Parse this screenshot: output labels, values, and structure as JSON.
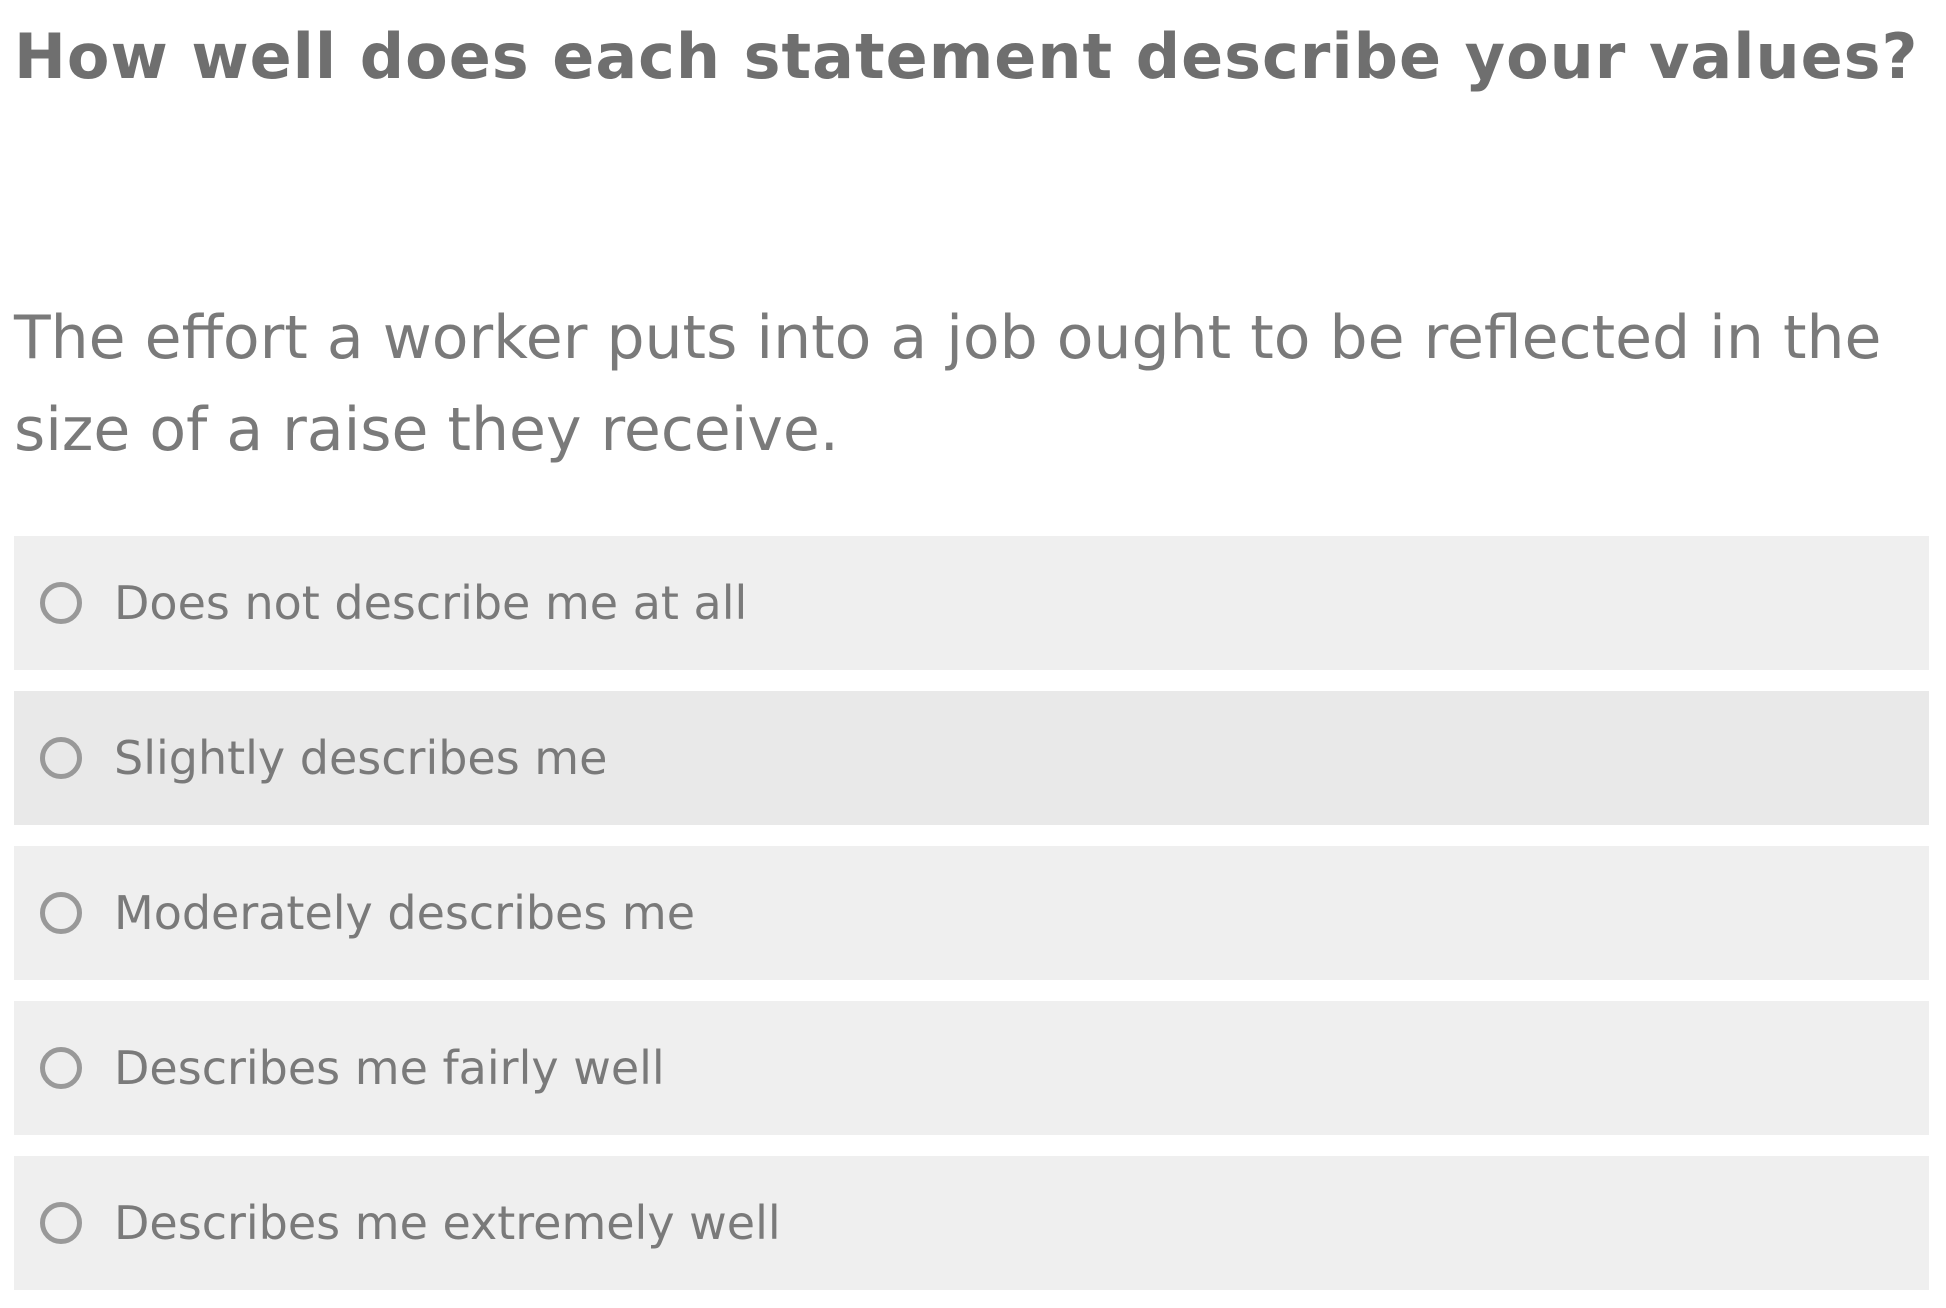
{
  "question": {
    "title": "How well does each statement describe your values?",
    "statement": "The effort a worker puts into a job ought to be reflected in the size of a raise they receive."
  },
  "options": [
    {
      "label": "Does not describe me at all",
      "selected": false
    },
    {
      "label": "Slightly describes me",
      "selected": false
    },
    {
      "label": "Moderately describes me",
      "selected": false
    },
    {
      "label": "Describes me fairly well",
      "selected": false
    },
    {
      "label": "Describes me extremely well",
      "selected": false
    }
  ],
  "colors": {
    "text": "#737373",
    "option_background": "#efefef",
    "option_background_hover": "#e9e9e9",
    "radio_border": "#999999"
  }
}
